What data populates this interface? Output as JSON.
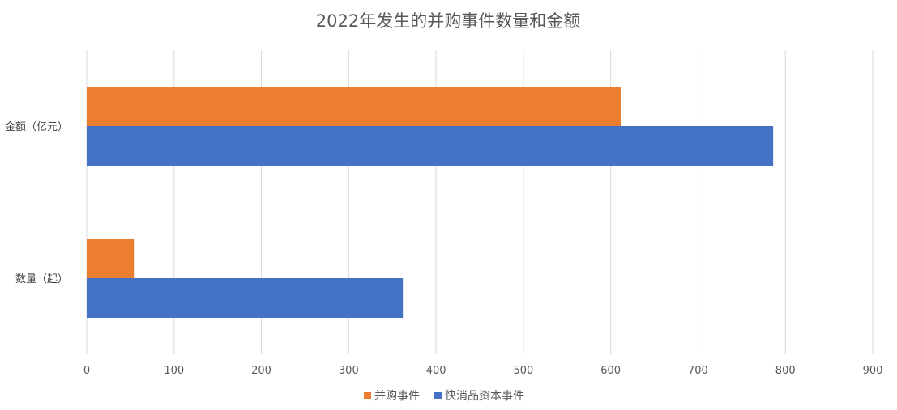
{
  "chart_data": {
    "type": "bar",
    "orientation": "horizontal",
    "title": "2022年发生的并购事件数量和金额",
    "categories": [
      "金额（亿元）",
      "数量（起）"
    ],
    "series": [
      {
        "name": "并购事件",
        "values": [
          612,
          54
        ],
        "color": "#ED7D31"
      },
      {
        "name": "快消品资本事件",
        "values": [
          786,
          362
        ],
        "color": "#4472C4"
      }
    ],
    "xlim": [
      0,
      900
    ],
    "xticks": [
      0,
      100,
      200,
      300,
      400,
      500,
      600,
      700,
      800,
      900
    ],
    "grid": true,
    "legend": "bottom"
  }
}
